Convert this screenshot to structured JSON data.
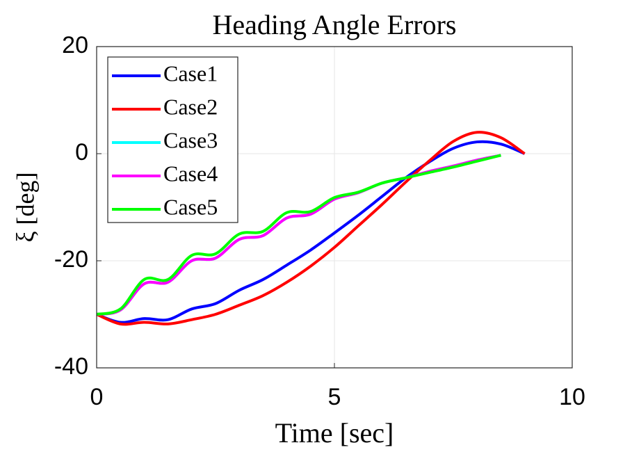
{
  "chart_data": {
    "type": "line",
    "title": "Heading Angle Errors",
    "xlabel": "Time [sec]",
    "ylabel": "ξ [deg]",
    "x": [
      0,
      0.5,
      1,
      1.5,
      2,
      2.5,
      3,
      3.5,
      4,
      4.5,
      5,
      5.5,
      6,
      6.5,
      7,
      7.5,
      8,
      8.5,
      9
    ],
    "series": [
      {
        "name": "Case1",
        "color": "#0000ff",
        "values": [
          -30,
          -31.5,
          -30.8,
          -31,
          -29,
          -28,
          -25.5,
          -23.5,
          -20.8,
          -18,
          -14.8,
          -11.5,
          -8,
          -4.5,
          -1.5,
          1,
          2.2,
          1.8,
          0
        ]
      },
      {
        "name": "Case2",
        "color": "#ff0000",
        "values": [
          -30,
          -31.8,
          -31.5,
          -31.8,
          -31,
          -30,
          -28.3,
          -26.5,
          -24,
          -21,
          -17.5,
          -13.5,
          -9.5,
          -5.3,
          -1.3,
          2.3,
          4,
          3,
          0
        ]
      },
      {
        "name": "Case3",
        "color": "#00ffff",
        "values": [
          -30,
          -29.2,
          -24.3,
          -24,
          -20,
          -19.5,
          -16,
          -15.3,
          -12,
          -11.3,
          -8.5,
          -7.3,
          -5.5,
          -4.5,
          -3.3,
          -2.3,
          -1.2,
          -0.3,
          null
        ]
      },
      {
        "name": "Case4",
        "color": "#ff00ff",
        "values": [
          -30,
          -29.2,
          -24.3,
          -24,
          -20,
          -19.5,
          -16,
          -15.3,
          -12,
          -11.3,
          -8.5,
          -7.3,
          -5.5,
          -4.5,
          -3.3,
          -2.3,
          -1.2,
          -0.3,
          null
        ]
      },
      {
        "name": "Case5",
        "color": "#00ff00",
        "values": [
          -30,
          -29,
          -23.5,
          -23.5,
          -19,
          -18.7,
          -15,
          -14.5,
          -11,
          -10.8,
          -8.2,
          -7.2,
          -5.5,
          -4.5,
          -3.5,
          -2.5,
          -1.4,
          -0.3,
          null
        ]
      }
    ],
    "xlim": [
      0,
      10
    ],
    "xticks": [
      0,
      5,
      10
    ],
    "ylim": [
      -40,
      20
    ],
    "yticks": [
      -40,
      -20,
      0,
      20
    ],
    "grid": true,
    "legend": "upper left"
  }
}
